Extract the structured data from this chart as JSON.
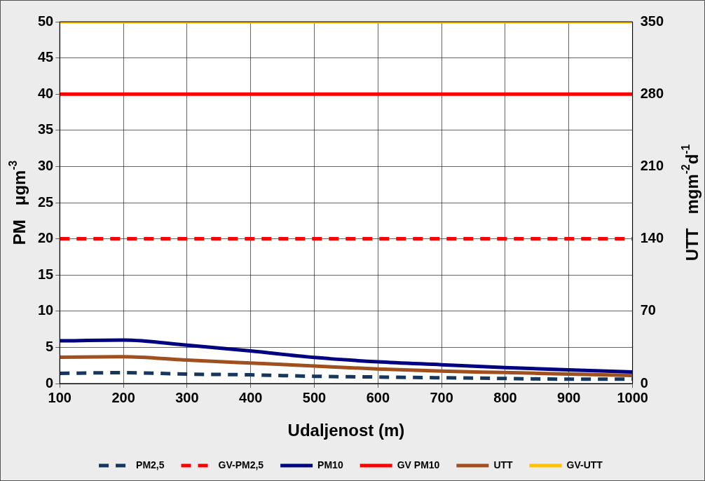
{
  "chart_data": {
    "type": "line",
    "xlabel": "Udaljenost (m)",
    "ylabel": "PM   μgm$^{-3}$",
    "y2label": "UTT   mgm$^{-2}$d$^{-1}$",
    "x": [
      100,
      200,
      300,
      400,
      500,
      600,
      700,
      800,
      900,
      1000
    ],
    "xlim": [
      100,
      1000
    ],
    "xticks": [
      100,
      200,
      300,
      400,
      500,
      600,
      700,
      800,
      900,
      1000
    ],
    "ylim": [
      0,
      50
    ],
    "yticks": [
      0,
      5,
      10,
      15,
      20,
      25,
      30,
      35,
      40,
      45,
      50
    ],
    "y2lim": [
      0,
      350
    ],
    "y2ticks": [
      0,
      70,
      140,
      210,
      280,
      350
    ],
    "grid": true,
    "legend": "bottom",
    "marker": "none",
    "series": [
      {
        "name": "PM2,5",
        "color": "#17365d",
        "line_style": "dashed",
        "values": [
          1.4,
          1.5,
          1.3,
          1.2,
          1.0,
          0.9,
          0.8,
          0.7,
          0.6,
          0.6
        ]
      },
      {
        "name": "GV-PM2,5",
        "color": "#ff0000",
        "line_style": "dashed",
        "values": [
          20,
          20,
          20,
          20,
          20,
          20,
          20,
          20,
          20,
          20
        ]
      },
      {
        "name": "PM10",
        "color": "#000080",
        "line_style": "solid",
        "values": [
          5.9,
          6.0,
          5.3,
          4.5,
          3.6,
          3.0,
          2.6,
          2.2,
          1.9,
          1.6
        ]
      },
      {
        "name": "GV PM10",
        "color": "#ff0000",
        "line_style": "solid",
        "values": [
          40,
          40,
          40,
          40,
          40,
          40,
          40,
          40,
          40,
          40
        ]
      },
      {
        "name": "UTT",
        "color": "#a0501e",
        "line_style": "solid",
        "axis": "y2",
        "values": [
          25.5,
          26,
          22.7,
          19.8,
          17,
          14,
          12,
          10.6,
          9.2,
          7.8
        ]
      },
      {
        "name": "GV-UTT",
        "color": "#ffc000",
        "line_style": "solid",
        "axis": "y2",
        "values": [
          350,
          350,
          350,
          350,
          350,
          350,
          350,
          350,
          350,
          350
        ]
      }
    ]
  }
}
